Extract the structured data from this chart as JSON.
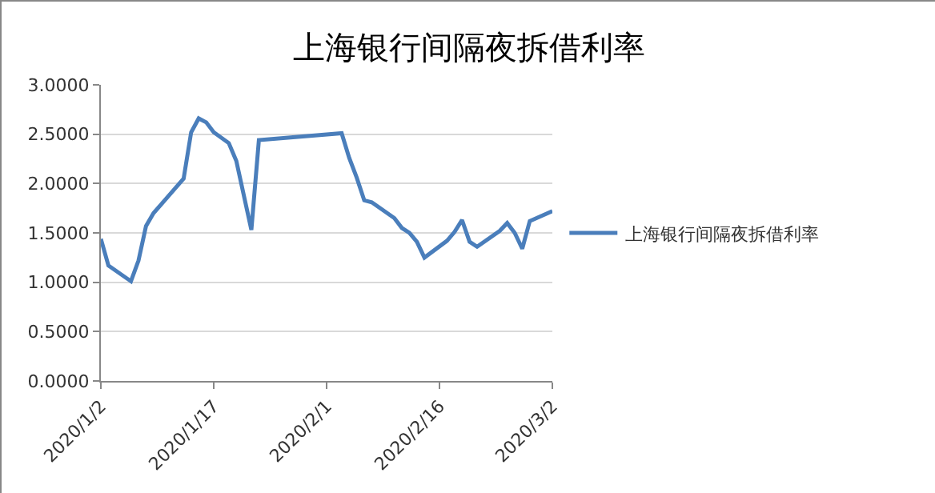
{
  "chart_data": {
    "type": "line",
    "title": "上海银行间隔夜拆借利率",
    "x": [
      "2020-01-02",
      "2020-01-03",
      "2020-01-06",
      "2020-01-07",
      "2020-01-08",
      "2020-01-09",
      "2020-01-13",
      "2020-01-14",
      "2020-01-15",
      "2020-01-16",
      "2020-01-17",
      "2020-01-19",
      "2020-01-20",
      "2020-01-22",
      "2020-01-23",
      "2020-02-03",
      "2020-02-04",
      "2020-02-05",
      "2020-02-06",
      "2020-02-07",
      "2020-02-10",
      "2020-02-11",
      "2020-02-12",
      "2020-02-13",
      "2020-02-14",
      "2020-02-17",
      "2020-02-18",
      "2020-02-19",
      "2020-02-20",
      "2020-02-21",
      "2020-02-24",
      "2020-02-25",
      "2020-02-26",
      "2020-02-27",
      "2020-02-28",
      "2020-03-02"
    ],
    "series": [
      {
        "name": "上海银行间隔夜拆借利率",
        "color": "#4a7ebb",
        "values": [
          1.44,
          1.17,
          1.01,
          1.22,
          1.57,
          1.7,
          2.05,
          2.52,
          2.66,
          2.62,
          2.52,
          2.41,
          2.23,
          1.53,
          2.44,
          2.51,
          2.26,
          2.06,
          1.83,
          1.81,
          1.65,
          1.55,
          1.5,
          1.41,
          1.25,
          1.42,
          1.51,
          1.63,
          1.41,
          1.36,
          1.52,
          1.6,
          1.5,
          1.34,
          1.62,
          1.72
        ]
      }
    ],
    "xlim": [
      "2020-01-02",
      "2020-03-02"
    ],
    "xticks": [
      {
        "value": "2020-01-02",
        "label": "2020/1/2"
      },
      {
        "value": "2020-01-17",
        "label": "2020/1/17"
      },
      {
        "value": "2020-02-01",
        "label": "2020/2/1"
      },
      {
        "value": "2020-02-16",
        "label": "2020/2/16"
      },
      {
        "value": "2020-03-02",
        "label": "2020/3/2"
      }
    ],
    "ylim": [
      0,
      3
    ],
    "yticks": [
      {
        "value": 0,
        "label": "0.0000"
      },
      {
        "value": 0.5,
        "label": "0.5000"
      },
      {
        "value": 1,
        "label": "1.0000"
      },
      {
        "value": 1.5,
        "label": "1.5000"
      },
      {
        "value": 2,
        "label": "2.0000"
      },
      {
        "value": 2.5,
        "label": "2.5000"
      },
      {
        "value": 3,
        "label": "3.0000"
      }
    ],
    "grid": "y",
    "legend": "right",
    "marker": "none",
    "line_style": "solid"
  }
}
